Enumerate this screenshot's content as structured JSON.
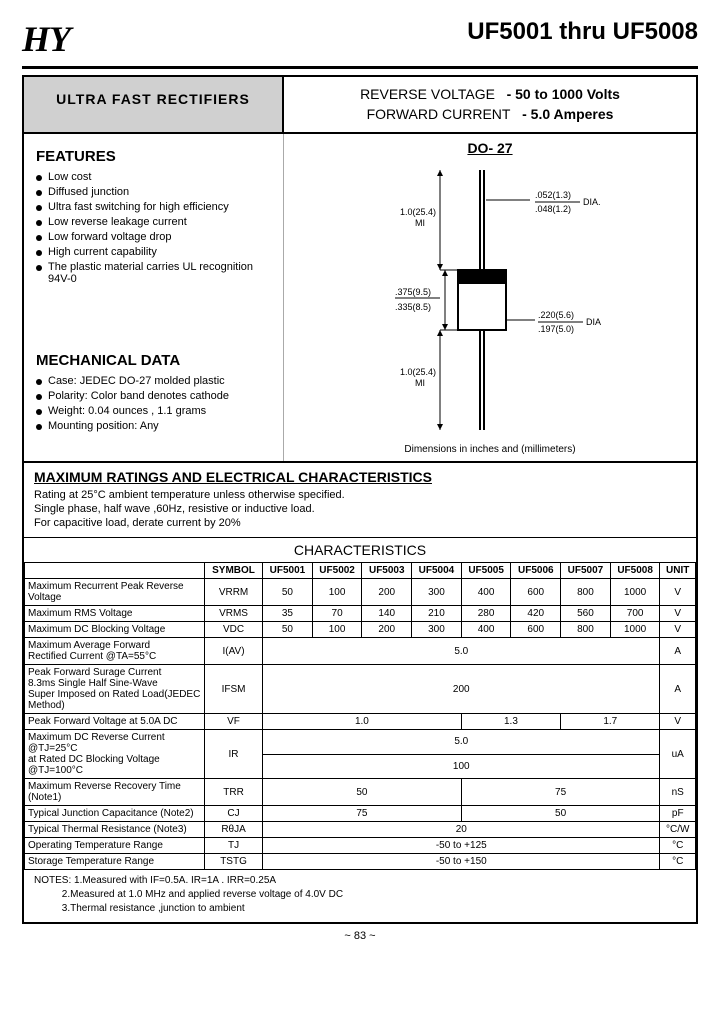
{
  "header": {
    "logo": "HY",
    "title": "UF5001 thru UF5008"
  },
  "title_box": "ULTRA  FAST  RECTIFIERS",
  "spec_box": {
    "line1_label": "REVERSE VOLTAGE",
    "line1_val": "-  50 to 1000 Volts",
    "line2_label": "FORWARD CURRENT",
    "line2_val": "-  5.0 Amperes"
  },
  "features_title": "FEATURES",
  "features": [
    "Low cost",
    "Diffused junction",
    "Ultra fast switching for high efficiency",
    "Low reverse leakage current",
    "Low forward voltage drop",
    "High current capability",
    "The plastic material carries UL recognition 94V-0"
  ],
  "mech_title": "MECHANICAL DATA",
  "mech": [
    "Case: JEDEC DO-27 molded plastic",
    "Polarity:  Color band denotes cathode",
    "Weight:  0.04 ounces , 1.1 grams",
    "Mounting position: Any"
  ],
  "package": {
    "name": "DO- 27",
    "lead_len": "1.0(25.4)\nMI",
    "lead_dia_top": ".052(1.3)",
    "lead_dia_bot": ".048(1.2)",
    "lead_dia_suffix": "DIA.",
    "body_h_top": ".375(9.5)",
    "body_h_bot": ".335(8.5)",
    "body_dia_top": ".220(5.6)",
    "body_dia_bot": ".197(5.0)",
    "body_dia_suffix": "DIA",
    "note": "Dimensions in inches and (millimeters)"
  },
  "max_block": {
    "title": "MAXIMUM RATINGS AND ELECTRICAL CHARACTERISTICS",
    "lines": [
      "Rating at 25°C ambient temperature unless otherwise specified.",
      "Single phase, half wave ,60Hz, resistive or inductive load.",
      "For capacitive load, derate current by 20%"
    ]
  },
  "table": {
    "title": "CHARACTERISTICS",
    "cols": [
      "SYMBOL",
      "UF5001",
      "UF5002",
      "UF5003",
      "UF5004",
      "UF5005",
      "UF5006",
      "UF5007",
      "UF5008",
      "UNIT"
    ],
    "rows": [
      {
        "label": "Maximum Recurrent Peak Reverse Voltage",
        "sym": "VRRM",
        "cells": [
          "50",
          "100",
          "200",
          "300",
          "400",
          "600",
          "800",
          "1000"
        ],
        "unit": "V"
      },
      {
        "label": "Maximum RMS Voltage",
        "sym": "VRMS",
        "cells": [
          "35",
          "70",
          "140",
          "210",
          "280",
          "420",
          "560",
          "700"
        ],
        "unit": "V"
      },
      {
        "label": "Maximum DC Blocking Voltage",
        "sym": "VDC",
        "cells": [
          "50",
          "100",
          "200",
          "300",
          "400",
          "600",
          "800",
          "1000"
        ],
        "unit": "V"
      }
    ],
    "span_rows": [
      {
        "label": "Maximum Average Forward\nRectified Current               @TA=55°C",
        "sym": "I(AV)",
        "span": 8,
        "val": "5.0",
        "unit": "A"
      },
      {
        "label": "Peak Forward Surage Current\n8.3ms Single Half Sine-Wave\nSuper Imposed on Rated Load(JEDEC Method)",
        "sym": "IFSM",
        "span": 8,
        "val": "200",
        "unit": "A"
      }
    ],
    "vf_row": {
      "label": "Peak Forward Voltage at 5.0A DC",
      "sym": "VF",
      "groups": [
        {
          "span": 4,
          "val": "1.0"
        },
        {
          "span": 2,
          "val": "1.3"
        },
        {
          "span": 2,
          "val": "1.7"
        }
      ],
      "unit": "V"
    },
    "ir_row": {
      "label": "Maximum DC Reverse Current           @TJ=25°C\nat Rated DC Blocking Voltage            @TJ=100°C",
      "sym": "IR",
      "rows": [
        {
          "span": 8,
          "val": "5.0"
        },
        {
          "span": 8,
          "val": "100"
        }
      ],
      "unit": "uA"
    },
    "trr_row": {
      "label": "Maximum Reverse Recovery Time (Note1)",
      "sym": "TRR",
      "groups": [
        {
          "span": 4,
          "val": "50"
        },
        {
          "span": 4,
          "val": "75"
        }
      ],
      "unit": "nS"
    },
    "cj_row": {
      "label": "Typical Junction Capacitance (Note2)",
      "sym": "CJ",
      "groups": [
        {
          "span": 4,
          "val": "75"
        },
        {
          "span": 4,
          "val": "50"
        }
      ],
      "unit": "pF"
    },
    "rth_row": {
      "label": "Typical Thermal Resistance (Note3)",
      "sym": "RθJA",
      "span": 8,
      "val": "20",
      "unit": "°C/W"
    },
    "tj_row": {
      "label": "Operating Temperature Range",
      "sym": "TJ",
      "span": 8,
      "val": "-50 to +125",
      "unit": "°C"
    },
    "tstg_row": {
      "label": "Storage Temperature Range",
      "sym": "TSTG",
      "span": 8,
      "val": "-50 to +150",
      "unit": "°C"
    }
  },
  "notes": {
    "prefix": "NOTES:",
    "items": [
      "1.Measured with IF=0.5A.   IR=1A .   IRR=0.25A",
      "2.Measured at 1.0 MHz and applied reverse voltage of 4.0V DC",
      "3.Thermal resistance ,junction to ambient"
    ]
  },
  "pagenum": "~ 83 ~"
}
